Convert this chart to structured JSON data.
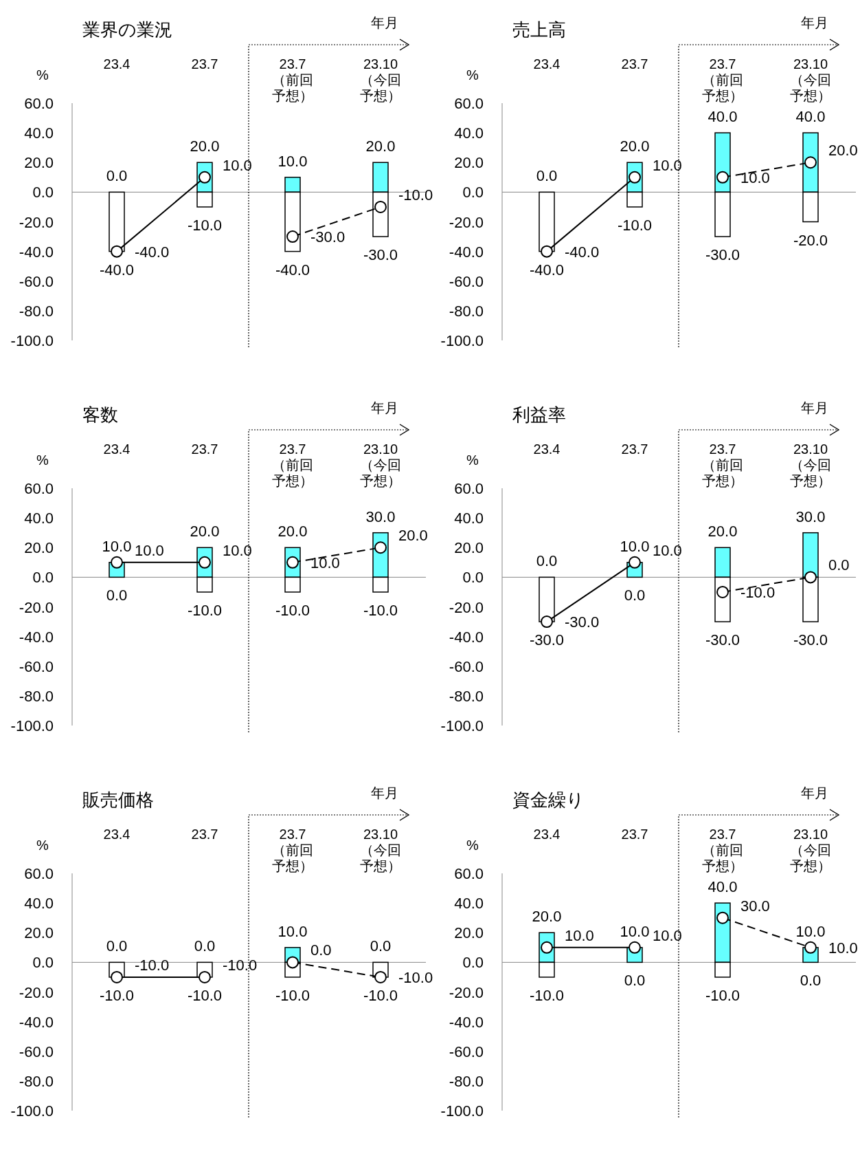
{
  "chart_data": [
    {
      "type": "bar",
      "title": "業界の業況",
      "ylabel": "%",
      "stacked": true,
      "annotations": [
        "年月"
      ],
      "categories": [
        "23.4",
        "23.7",
        "23.7（前回予想）",
        "23.10（今回予想）"
      ],
      "ylim": [
        -100,
        60
      ],
      "yticks": [
        {
          "value": 60,
          "label": "60.0"
        },
        {
          "value": 40,
          "label": "40.0"
        },
        {
          "value": 20,
          "label": "20.0"
        },
        {
          "value": 0,
          "label": "0.0"
        },
        {
          "value": -20,
          "label": "-20.0"
        },
        {
          "value": -40,
          "label": "-40.0"
        },
        {
          "value": -60,
          "label": "-60.0"
        },
        {
          "value": -80,
          "label": "-80.0"
        },
        {
          "value": -100,
          "label": "-100.0"
        }
      ],
      "series": [
        {
          "color": "#66ffff",
          "values": [
            0,
            20,
            10,
            20
          ],
          "value_labels": [
            "0.0",
            "20.0",
            "10.0",
            "20.0"
          ]
        },
        {
          "color": "#ffffff",
          "values": [
            -40,
            -10,
            -40,
            -30
          ],
          "value_labels": [
            "-40.0",
            "-10.0",
            "-40.0",
            "-30.0"
          ]
        },
        {
          "type": "line",
          "color": "#000000",
          "marker": "circle",
          "line_style": "solid",
          "values": [
            -40,
            10,
            null,
            null
          ],
          "value_labels": [
            "-40.0",
            "10.0",
            null,
            null
          ]
        },
        {
          "type": "line",
          "color": "#000000",
          "marker": "circle",
          "line_style": "dashed",
          "values": [
            null,
            null,
            -30,
            -10
          ],
          "value_labels": [
            null,
            null,
            "-30.0",
            "-10.0"
          ]
        }
      ]
    },
    {
      "type": "bar",
      "title": "売上高",
      "ylabel": "%",
      "stacked": true,
      "annotations": [
        "年月"
      ],
      "categories": [
        "23.4",
        "23.7",
        "23.7（前回予想）",
        "23.10（今回予想）"
      ],
      "ylim": [
        -100,
        60
      ],
      "yticks": [
        {
          "value": 60,
          "label": "60.0"
        },
        {
          "value": 40,
          "label": "40.0"
        },
        {
          "value": 20,
          "label": "20.0"
        },
        {
          "value": 0,
          "label": "0.0"
        },
        {
          "value": -20,
          "label": "-20.0"
        },
        {
          "value": -40,
          "label": "-40.0"
        },
        {
          "value": -60,
          "label": "-60.0"
        },
        {
          "value": -80,
          "label": "-80.0"
        },
        {
          "value": -100,
          "label": "-100.0"
        }
      ],
      "series": [
        {
          "color": "#66ffff",
          "values": [
            0,
            20,
            40,
            40
          ],
          "value_labels": [
            "0.0",
            "20.0",
            "40.0",
            "40.0"
          ]
        },
        {
          "color": "#ffffff",
          "values": [
            -40,
            -10,
            -30,
            -20
          ],
          "value_labels": [
            "-40.0",
            "-10.0",
            "-30.0",
            "-20.0"
          ]
        },
        {
          "type": "line",
          "color": "#000000",
          "marker": "circle",
          "line_style": "solid",
          "values": [
            -40,
            10,
            null,
            null
          ],
          "value_labels": [
            "-40.0",
            "10.0",
            null,
            null
          ]
        },
        {
          "type": "line",
          "color": "#000000",
          "marker": "circle",
          "line_style": "dashed",
          "values": [
            null,
            null,
            10,
            20
          ],
          "value_labels": [
            null,
            null,
            "10.0",
            "20.0"
          ]
        }
      ]
    },
    {
      "type": "bar",
      "title": "客数",
      "ylabel": "%",
      "stacked": true,
      "annotations": [
        "年月"
      ],
      "categories": [
        "23.4",
        "23.7",
        "23.7（前回予想）",
        "23.10（今回予想）"
      ],
      "ylim": [
        -100,
        60
      ],
      "yticks": [
        {
          "value": 60,
          "label": "60.0"
        },
        {
          "value": 40,
          "label": "40.0"
        },
        {
          "value": 20,
          "label": "20.0"
        },
        {
          "value": 0,
          "label": "0.0"
        },
        {
          "value": -20,
          "label": "-20.0"
        },
        {
          "value": -40,
          "label": "-40.0"
        },
        {
          "value": -60,
          "label": "-60.0"
        },
        {
          "value": -80,
          "label": "-80.0"
        },
        {
          "value": -100,
          "label": "-100.0"
        }
      ],
      "series": [
        {
          "color": "#66ffff",
          "values": [
            10,
            20,
            20,
            30
          ],
          "value_labels": [
            "10.0",
            "20.0",
            "20.0",
            "30.0"
          ]
        },
        {
          "color": "#ffffff",
          "values": [
            0,
            -10,
            -10,
            -10
          ],
          "value_labels": [
            "0.0",
            "-10.0",
            "-10.0",
            "-10.0"
          ]
        },
        {
          "type": "line",
          "color": "#000000",
          "marker": "circle",
          "line_style": "solid",
          "values": [
            10,
            10,
            null,
            null
          ],
          "value_labels": [
            "10.0",
            "10.0",
            null,
            null
          ]
        },
        {
          "type": "line",
          "color": "#000000",
          "marker": "circle",
          "line_style": "dashed",
          "values": [
            null,
            null,
            10,
            20
          ],
          "value_labels": [
            null,
            null,
            "10.0",
            "20.0"
          ]
        }
      ]
    },
    {
      "type": "bar",
      "title": "利益率",
      "ylabel": "%",
      "stacked": true,
      "annotations": [
        "年月"
      ],
      "categories": [
        "23.4",
        "23.7",
        "23.7（前回予想）",
        "23.10（今回予想）"
      ],
      "ylim": [
        -100,
        60
      ],
      "yticks": [
        {
          "value": 60,
          "label": "60.0"
        },
        {
          "value": 40,
          "label": "40.0"
        },
        {
          "value": 20,
          "label": "20.0"
        },
        {
          "value": 0,
          "label": "0.0"
        },
        {
          "value": -20,
          "label": "-20.0"
        },
        {
          "value": -40,
          "label": "-40.0"
        },
        {
          "value": -60,
          "label": "-60.0"
        },
        {
          "value": -80,
          "label": "-80.0"
        },
        {
          "value": -100,
          "label": "-100.0"
        }
      ],
      "series": [
        {
          "color": "#66ffff",
          "values": [
            0,
            10,
            20,
            30
          ],
          "value_labels": [
            "0.0",
            "10.0",
            "20.0",
            "30.0"
          ]
        },
        {
          "color": "#ffffff",
          "values": [
            -30,
            0,
            -30,
            -30
          ],
          "value_labels": [
            "-30.0",
            "0.0",
            "-30.0",
            "-30.0"
          ]
        },
        {
          "type": "line",
          "color": "#000000",
          "marker": "circle",
          "line_style": "solid",
          "values": [
            -30,
            10,
            null,
            null
          ],
          "value_labels": [
            "-30.0",
            "10.0",
            null,
            null
          ]
        },
        {
          "type": "line",
          "color": "#000000",
          "marker": "circle",
          "line_style": "dashed",
          "values": [
            null,
            null,
            -10,
            0
          ],
          "value_labels": [
            null,
            null,
            "-10.0",
            "0.0"
          ]
        }
      ]
    },
    {
      "type": "bar",
      "title": "販売価格",
      "ylabel": "%",
      "stacked": true,
      "annotations": [
        "年月"
      ],
      "categories": [
        "23.4",
        "23.7",
        "23.7（前回予想）",
        "23.10（今回予想）"
      ],
      "ylim": [
        -100,
        60
      ],
      "yticks": [
        {
          "value": 60,
          "label": "60.0"
        },
        {
          "value": 40,
          "label": "40.0"
        },
        {
          "value": 20,
          "label": "20.0"
        },
        {
          "value": 0,
          "label": "0.0"
        },
        {
          "value": -20,
          "label": "-20.0"
        },
        {
          "value": -40,
          "label": "-40.0"
        },
        {
          "value": -60,
          "label": "-60.0"
        },
        {
          "value": -80,
          "label": "-80.0"
        },
        {
          "value": -100,
          "label": "-100.0"
        }
      ],
      "series": [
        {
          "color": "#66ffff",
          "values": [
            0,
            0,
            10,
            0
          ],
          "value_labels": [
            "0.0",
            "0.0",
            "10.0",
            "0.0"
          ]
        },
        {
          "color": "#ffffff",
          "values": [
            -10,
            -10,
            -10,
            -10
          ],
          "value_labels": [
            "-10.0",
            "-10.0",
            "-10.0",
            "-10.0"
          ]
        },
        {
          "type": "line",
          "color": "#000000",
          "marker": "circle",
          "line_style": "solid",
          "values": [
            -10,
            -10,
            null,
            null
          ],
          "value_labels": [
            "-10.0",
            "-10.0",
            null,
            null
          ]
        },
        {
          "type": "line",
          "color": "#000000",
          "marker": "circle",
          "line_style": "dashed",
          "values": [
            null,
            null,
            0,
            -10
          ],
          "value_labels": [
            null,
            null,
            "0.0",
            "-10.0"
          ]
        }
      ]
    },
    {
      "type": "bar",
      "title": "資金繰り",
      "ylabel": "%",
      "stacked": true,
      "annotations": [
        "年月"
      ],
      "categories": [
        "23.4",
        "23.7",
        "23.7（前回予想）",
        "23.10（今回予想）"
      ],
      "ylim": [
        -100,
        60
      ],
      "yticks": [
        {
          "value": 60,
          "label": "60.0"
        },
        {
          "value": 40,
          "label": "40.0"
        },
        {
          "value": 20,
          "label": "20.0"
        },
        {
          "value": 0,
          "label": "0.0"
        },
        {
          "value": -20,
          "label": "-20.0"
        },
        {
          "value": -40,
          "label": "-40.0"
        },
        {
          "value": -60,
          "label": "-60.0"
        },
        {
          "value": -80,
          "label": "-80.0"
        },
        {
          "value": -100,
          "label": "-100.0"
        }
      ],
      "series": [
        {
          "color": "#66ffff",
          "values": [
            20,
            10,
            40,
            10
          ],
          "value_labels": [
            "20.0",
            "10.0",
            "40.0",
            "10.0"
          ]
        },
        {
          "color": "#ffffff",
          "values": [
            -10,
            0,
            -10,
            0
          ],
          "value_labels": [
            "-10.0",
            "0.0",
            "-10.0",
            "0.0"
          ]
        },
        {
          "type": "line",
          "color": "#000000",
          "marker": "circle",
          "line_style": "solid",
          "values": [
            10,
            10,
            null,
            null
          ],
          "value_labels": [
            "10.0",
            "10.0",
            null,
            null
          ]
        },
        {
          "type": "line",
          "color": "#000000",
          "marker": "circle",
          "line_style": "dashed",
          "values": [
            null,
            null,
            30,
            10
          ],
          "value_labels": [
            null,
            null,
            "30.0",
            "10.0"
          ]
        }
      ]
    }
  ]
}
